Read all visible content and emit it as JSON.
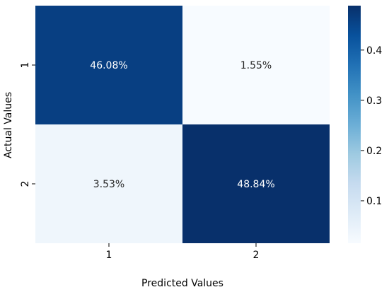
{
  "chart_data": {
    "type": "heatmap",
    "xlabel": "Predicted Values",
    "ylabel": "Actual Values",
    "x_categories": [
      "1",
      "2"
    ],
    "y_categories": [
      "1",
      "2"
    ],
    "values": [
      [
        0.4608,
        0.0155
      ],
      [
        0.0353,
        0.4884
      ]
    ],
    "annotations": [
      [
        "46.08%",
        "1.55%"
      ],
      [
        "3.53%",
        "48.84%"
      ]
    ],
    "colorbar": {
      "colormap": "Blues",
      "range": [
        0.0155,
        0.4884
      ],
      "ticks": [
        0.1,
        0.2,
        0.3,
        0.4
      ],
      "tick_labels": [
        "0.1",
        "0.2",
        "0.3",
        "0.4"
      ]
    }
  }
}
